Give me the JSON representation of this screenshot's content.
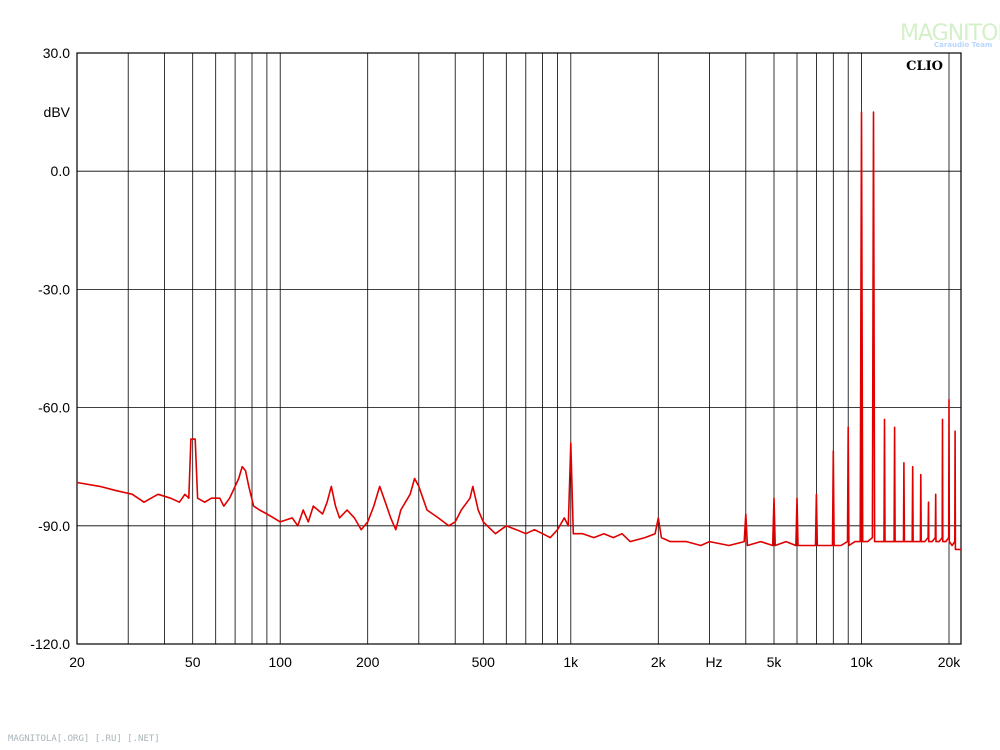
{
  "watermark": {
    "main": "MAGNITOLA",
    "sub": "Caraudio Team",
    "footer": "MAGNITOLA[.ORG] [.RU] [.NET]"
  },
  "colors": {
    "trace": "#e00000",
    "grid": "#000000",
    "background": "#ffffff"
  },
  "chart_data": {
    "type": "line",
    "title": "",
    "brand_label": "CLIO",
    "ylabel": "dBV",
    "xlabel": "Hz",
    "xscale": "log",
    "xlim": [
      20,
      22000
    ],
    "ylim": [
      -120,
      30
    ],
    "grid": true,
    "y_ticks": [
      {
        "value": 30,
        "label": "30.0"
      },
      {
        "value": 0,
        "label": "0.0"
      },
      {
        "value": -30,
        "label": "-30.0"
      },
      {
        "value": -60,
        "label": "-60.0"
      },
      {
        "value": -90,
        "label": "-90.0"
      },
      {
        "value": -120,
        "label": "-120.0"
      }
    ],
    "x_ticks": [
      {
        "value": 20,
        "label": "20"
      },
      {
        "value": 50,
        "label": "50"
      },
      {
        "value": 100,
        "label": "100"
      },
      {
        "value": 200,
        "label": "200"
      },
      {
        "value": 500,
        "label": "500"
      },
      {
        "value": 1000,
        "label": "1k"
      },
      {
        "value": 2000,
        "label": "2k"
      },
      {
        "value": 5000,
        "label": "5k"
      },
      {
        "value": 10000,
        "label": "10k"
      },
      {
        "value": 20000,
        "label": "20k"
      }
    ],
    "x_gridlines": [
      30,
      40,
      50,
      60,
      70,
      80,
      90,
      100,
      200,
      300,
      400,
      500,
      600,
      700,
      800,
      900,
      1000,
      2000,
      3000,
      4000,
      5000,
      6000,
      7000,
      8000,
      9000,
      10000,
      20000
    ],
    "series": [
      {
        "color": "#e00000",
        "points": [
          [
            20,
            -79
          ],
          [
            24,
            -80
          ],
          [
            27,
            -81
          ],
          [
            31,
            -82
          ],
          [
            34,
            -84
          ],
          [
            38,
            -82
          ],
          [
            42,
            -83
          ],
          [
            45,
            -84
          ],
          [
            47,
            -82
          ],
          [
            48.5,
            -83
          ],
          [
            49.3,
            -68
          ],
          [
            51,
            -68
          ],
          [
            52,
            -83
          ],
          [
            55,
            -84
          ],
          [
            58,
            -83
          ],
          [
            62,
            -83
          ],
          [
            64,
            -85
          ],
          [
            67,
            -83
          ],
          [
            70,
            -80
          ],
          [
            72,
            -78
          ],
          [
            74,
            -75
          ],
          [
            76,
            -76
          ],
          [
            78,
            -80
          ],
          [
            81,
            -85
          ],
          [
            85,
            -86
          ],
          [
            90,
            -87
          ],
          [
            95,
            -88
          ],
          [
            100,
            -89
          ],
          [
            110,
            -88
          ],
          [
            115,
            -90
          ],
          [
            120,
            -86
          ],
          [
            125,
            -89
          ],
          [
            130,
            -85
          ],
          [
            140,
            -87
          ],
          [
            145,
            -84
          ],
          [
            150,
            -80
          ],
          [
            155,
            -85
          ],
          [
            160,
            -88
          ],
          [
            170,
            -86
          ],
          [
            180,
            -88
          ],
          [
            190,
            -91
          ],
          [
            200,
            -89
          ],
          [
            210,
            -85
          ],
          [
            220,
            -80
          ],
          [
            230,
            -84
          ],
          [
            240,
            -88
          ],
          [
            250,
            -91
          ],
          [
            260,
            -86
          ],
          [
            280,
            -82
          ],
          [
            290,
            -78
          ],
          [
            300,
            -80
          ],
          [
            320,
            -86
          ],
          [
            350,
            -88
          ],
          [
            380,
            -90
          ],
          [
            400,
            -89
          ],
          [
            420,
            -86
          ],
          [
            450,
            -83
          ],
          [
            460,
            -80
          ],
          [
            480,
            -86
          ],
          [
            500,
            -89
          ],
          [
            550,
            -92
          ],
          [
            600,
            -90
          ],
          [
            650,
            -91
          ],
          [
            700,
            -92
          ],
          [
            750,
            -91
          ],
          [
            800,
            -92
          ],
          [
            850,
            -93
          ],
          [
            900,
            -91
          ],
          [
            950,
            -88
          ],
          [
            980,
            -90
          ],
          [
            1000,
            -69
          ],
          [
            1020,
            -92
          ],
          [
            1100,
            -92
          ],
          [
            1200,
            -93
          ],
          [
            1300,
            -92
          ],
          [
            1400,
            -93
          ],
          [
            1500,
            -92
          ],
          [
            1600,
            -94
          ],
          [
            1800,
            -93
          ],
          [
            1950,
            -92
          ],
          [
            2000,
            -88
          ],
          [
            2050,
            -93
          ],
          [
            2200,
            -94
          ],
          [
            2500,
            -94
          ],
          [
            2800,
            -95
          ],
          [
            3000,
            -94
          ],
          [
            3500,
            -95
          ],
          [
            3950,
            -94
          ],
          [
            4000,
            -87
          ],
          [
            4050,
            -95
          ],
          [
            4500,
            -94
          ],
          [
            4950,
            -95
          ],
          [
            5000,
            -83
          ],
          [
            5050,
            -95
          ],
          [
            5500,
            -94
          ],
          [
            5950,
            -95
          ],
          [
            6000,
            -83
          ],
          [
            6050,
            -95
          ],
          [
            6500,
            -95
          ],
          [
            6950,
            -95
          ],
          [
            7000,
            -82
          ],
          [
            7050,
            -95
          ],
          [
            7500,
            -95
          ],
          [
            7950,
            -95
          ],
          [
            8000,
            -71
          ],
          [
            8050,
            -95
          ],
          [
            8500,
            -95
          ],
          [
            8950,
            -94
          ],
          [
            9000,
            -65
          ],
          [
            9050,
            -95
          ],
          [
            9500,
            -94
          ],
          [
            9900,
            -94
          ],
          [
            10000,
            15
          ],
          [
            10100,
            -94
          ],
          [
            10500,
            -94
          ],
          [
            10900,
            -93
          ],
          [
            11000,
            15
          ],
          [
            11100,
            -94
          ],
          [
            11500,
            -94
          ],
          [
            11950,
            -94
          ],
          [
            12000,
            -63
          ],
          [
            12050,
            -94
          ],
          [
            12500,
            -94
          ],
          [
            12950,
            -94
          ],
          [
            13000,
            -65
          ],
          [
            13050,
            -94
          ],
          [
            13500,
            -94
          ],
          [
            13950,
            -94
          ],
          [
            14000,
            -74
          ],
          [
            14050,
            -94
          ],
          [
            14500,
            -94
          ],
          [
            14950,
            -94
          ],
          [
            15000,
            -75
          ],
          [
            15050,
            -94
          ],
          [
            15500,
            -94
          ],
          [
            15950,
            -94
          ],
          [
            16000,
            -77
          ],
          [
            16050,
            -94
          ],
          [
            16500,
            -94
          ],
          [
            16950,
            -93
          ],
          [
            17000,
            -84
          ],
          [
            17050,
            -94
          ],
          [
            17500,
            -94
          ],
          [
            17950,
            -93
          ],
          [
            18000,
            -82
          ],
          [
            18050,
            -94
          ],
          [
            18500,
            -94
          ],
          [
            18950,
            -93
          ],
          [
            19000,
            -63
          ],
          [
            19050,
            -94
          ],
          [
            19500,
            -94
          ],
          [
            19950,
            -93
          ],
          [
            20000,
            -58
          ],
          [
            20050,
            -94
          ],
          [
            20500,
            -95
          ],
          [
            20950,
            -94
          ],
          [
            21000,
            -66
          ],
          [
            21050,
            -96
          ],
          [
            22000,
            -96
          ]
        ]
      }
    ]
  }
}
